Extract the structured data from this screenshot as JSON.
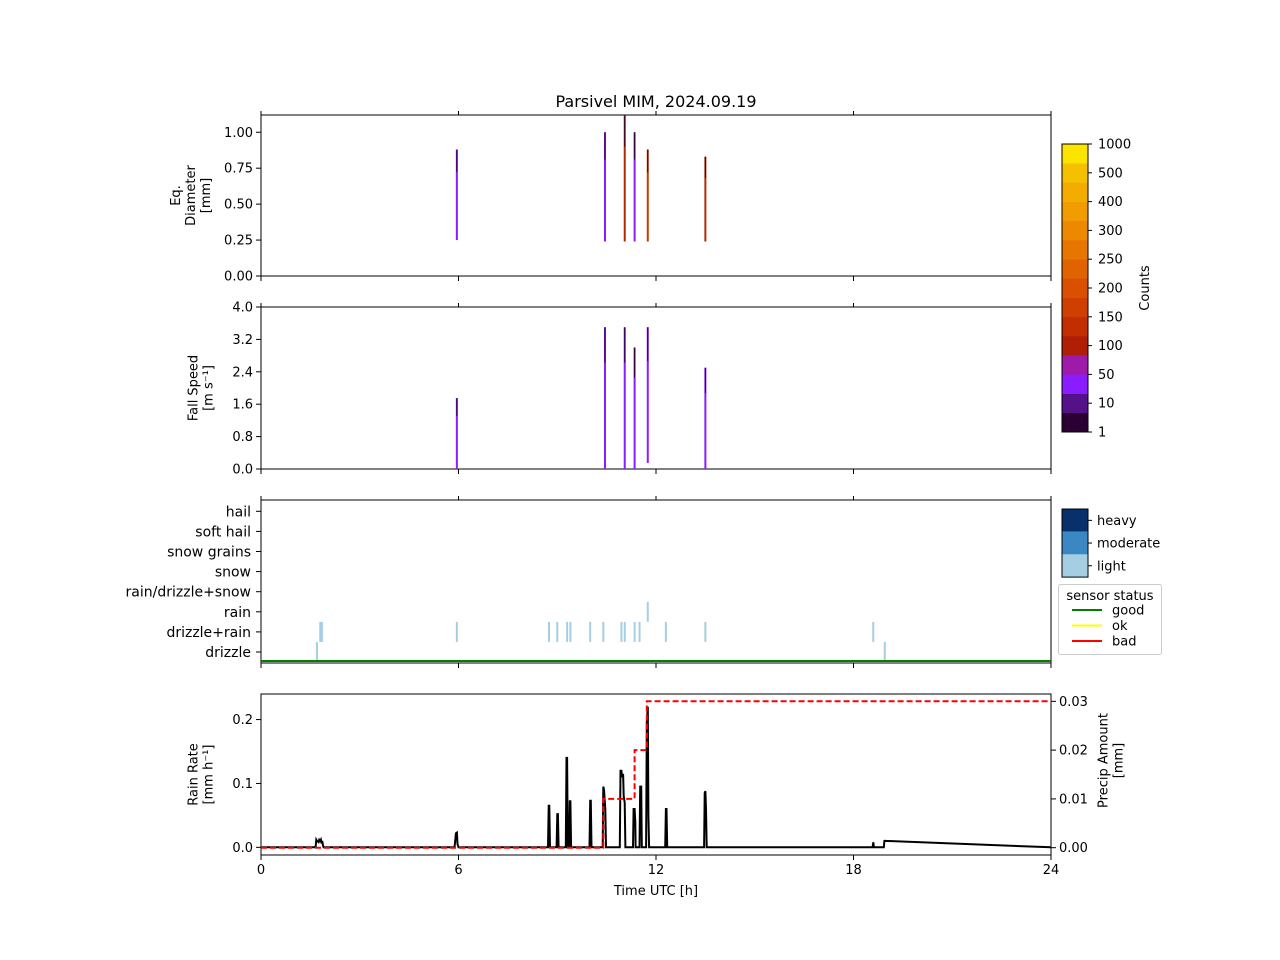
{
  "title": "Parsivel MIM, 2024.09.19",
  "colors": {
    "line": "#000000",
    "cumulative": "#ff0000",
    "good": "#008000",
    "ok": "#ffff00",
    "bad": "#ff0000",
    "light": "#a6cee3",
    "moderate": "#3a87c4",
    "heavy": "#08306b"
  },
  "chart_data": [
    {
      "type": "heatmap",
      "panel": "diameter",
      "ylabel": [
        "Eq.",
        "Diameter",
        "[mm]"
      ],
      "xlim": [
        0,
        24
      ],
      "ylim": [
        0,
        1.12
      ],
      "yticks": [
        "0.00",
        "0.25",
        "0.50",
        "0.75",
        "1.00"
      ],
      "xticks": [
        0,
        6,
        12,
        18,
        24
      ],
      "columns": [
        {
          "t": 5.95,
          "y0": 0.25,
          "y1": 0.88,
          "color": "#8a1cff"
        },
        {
          "t": 10.45,
          "y0": 0.24,
          "y1": 1.0,
          "color": "#8a1cff"
        },
        {
          "t": 11.05,
          "y0": 0.24,
          "y1": 1.12,
          "color": "#b02a00"
        },
        {
          "t": 11.35,
          "y0": 0.24,
          "y1": 1.0,
          "color": "#8a1cff"
        },
        {
          "t": 11.75,
          "y0": 0.24,
          "y1": 0.88,
          "color": "#c33d00"
        },
        {
          "t": 13.5,
          "y0": 0.24,
          "y1": 0.83,
          "color": "#b02a00"
        }
      ]
    },
    {
      "type": "heatmap",
      "panel": "fallspeed",
      "ylabel": [
        "Fall Speed",
        "[m s⁻¹]"
      ],
      "xlim": [
        0,
        24
      ],
      "ylim": [
        0,
        4.0
      ],
      "yticks": [
        "0.0",
        "0.8",
        "1.6",
        "2.4",
        "3.2",
        "4.0"
      ],
      "xticks": [
        0,
        6,
        12,
        18,
        24
      ],
      "columns": [
        {
          "t": 5.95,
          "y0": 0.0,
          "y1": 1.75,
          "color": "#8a1cff"
        },
        {
          "t": 10.45,
          "y0": 0.0,
          "y1": 3.5,
          "color": "#8a1cff"
        },
        {
          "t": 11.05,
          "y0": 0.0,
          "y1": 3.5,
          "color": "#8a1cff"
        },
        {
          "t": 11.35,
          "y0": 0.0,
          "y1": 3.0,
          "color": "#8a1cff"
        },
        {
          "t": 11.75,
          "y0": 0.15,
          "y1": 3.5,
          "color": "#8a1cff"
        },
        {
          "t": 13.5,
          "y0": 0.0,
          "y1": 2.5,
          "color": "#8a1cff"
        }
      ]
    },
    {
      "type": "bar",
      "panel": "weather-type",
      "categories": [
        "drizzle",
        "drizzle+rain",
        "rain",
        "rain/drizzle+snow",
        "snow",
        "snow grains",
        "soft hail",
        "hail"
      ],
      "xlim": [
        0,
        24
      ],
      "xticks": [
        0,
        6,
        12,
        18,
        24
      ],
      "events": [
        {
          "t": 1.7,
          "cat": 0,
          "level": "light"
        },
        {
          "t": 1.8,
          "cat": 1,
          "level": "light"
        },
        {
          "t": 1.85,
          "cat": 1,
          "level": "light"
        },
        {
          "t": 5.95,
          "cat": 1,
          "level": "light"
        },
        {
          "t": 8.75,
          "cat": 1,
          "level": "light"
        },
        {
          "t": 9.0,
          "cat": 1,
          "level": "light"
        },
        {
          "t": 9.3,
          "cat": 1,
          "level": "light"
        },
        {
          "t": 9.4,
          "cat": 1,
          "level": "light"
        },
        {
          "t": 10.0,
          "cat": 1,
          "level": "light"
        },
        {
          "t": 10.4,
          "cat": 1,
          "level": "light"
        },
        {
          "t": 10.95,
          "cat": 1,
          "level": "light"
        },
        {
          "t": 11.05,
          "cat": 1,
          "level": "light"
        },
        {
          "t": 11.35,
          "cat": 1,
          "level": "light"
        },
        {
          "t": 11.5,
          "cat": 1,
          "level": "light"
        },
        {
          "t": 11.75,
          "cat": 2,
          "level": "light"
        },
        {
          "t": 12.3,
          "cat": 1,
          "level": "light"
        },
        {
          "t": 13.5,
          "cat": 1,
          "level": "light"
        },
        {
          "t": 18.6,
          "cat": 1,
          "level": "light"
        },
        {
          "t": 18.95,
          "cat": 0,
          "level": "light"
        }
      ],
      "status": [
        {
          "t0": 0,
          "t1": 24,
          "state": "good"
        }
      ],
      "legend_intensity": [
        "heavy",
        "moderate",
        "light"
      ],
      "legend_status": {
        "title": "sensor status",
        "items": [
          "good",
          "ok",
          "bad"
        ]
      }
    },
    {
      "type": "line",
      "panel": "rain-rate",
      "xlabel": "Time UTC [h]",
      "ylabel": [
        "Rain Rate",
        "[mm h⁻¹]"
      ],
      "y2label": [
        "Precip Amount",
        "[mm]"
      ],
      "xlim": [
        0,
        24
      ],
      "ylim": [
        -0.012,
        0.24
      ],
      "y2lim": [
        -0.0015,
        0.0315
      ],
      "xticks": [
        0,
        6,
        12,
        18,
        24
      ],
      "yticks": [
        "0.0",
        "0.1",
        "0.2"
      ],
      "y2ticks": [
        "0.00",
        "0.01",
        "0.02",
        "0.03"
      ],
      "rain_rate": {
        "t": [
          0.0,
          1.66,
          1.68,
          1.7,
          1.75,
          1.77,
          1.8,
          1.82,
          1.84,
          1.86,
          1.88,
          1.9,
          5.88,
          5.9,
          5.92,
          5.95,
          5.97,
          6.0,
          8.72,
          8.74,
          8.76,
          8.78,
          8.98,
          9.0,
          9.02,
          9.04,
          9.26,
          9.28,
          9.3,
          9.32,
          9.36,
          9.38,
          9.4,
          9.42,
          9.98,
          10.0,
          10.02,
          10.04,
          10.38,
          10.4,
          10.42,
          10.46,
          10.48,
          10.9,
          10.92,
          10.95,
          10.97,
          11.0,
          11.02,
          11.05,
          11.07,
          11.08,
          11.3,
          11.32,
          11.35,
          11.37,
          11.38,
          11.5,
          11.52,
          11.55,
          11.57,
          11.7,
          11.72,
          11.75,
          11.77,
          11.79,
          12.28,
          12.3,
          12.32,
          12.34,
          13.46,
          13.48,
          13.5,
          13.52,
          13.54,
          18.58,
          18.6,
          18.62,
          18.92,
          18.94,
          18.96,
          24.0
        ],
        "v": [
          0,
          0,
          0.012,
          0.01,
          0.008,
          0.012,
          0.01,
          0.012,
          0.006,
          0.01,
          0.004,
          0,
          0,
          0.01,
          0.022,
          0.023,
          0.005,
          0,
          0,
          0.065,
          0.065,
          0,
          0,
          0.052,
          0.052,
          0,
          0,
          0.14,
          0.14,
          0,
          0,
          0.072,
          0.072,
          0,
          0,
          0.073,
          0.073,
          0,
          0,
          0.095,
          0.09,
          0.06,
          0,
          0,
          0.12,
          0.12,
          0.11,
          0.115,
          0.08,
          0.07,
          0,
          0,
          0,
          0.06,
          0.06,
          0.04,
          0,
          0,
          0.095,
          0.095,
          0,
          0,
          0.195,
          0.22,
          0.05,
          0,
          0,
          0.06,
          0.06,
          0,
          0,
          0.085,
          0.088,
          0.06,
          0,
          0,
          0.008,
          0,
          0,
          0.01,
          0.01,
          0
        ]
      },
      "precip_amount": {
        "t": [
          0.0,
          10.4,
          10.4,
          11.35,
          11.35,
          11.55,
          11.55,
          11.72,
          11.72,
          24.0
        ],
        "v": [
          0.0,
          0.0,
          0.01,
          0.01,
          0.02,
          0.02,
          0.02,
          0.02,
          0.03,
          0.03
        ]
      }
    }
  ],
  "colorbar": {
    "label": "Counts",
    "ticks": [
      "1",
      "10",
      "50",
      "100",
      "150",
      "200",
      "250",
      "300",
      "400",
      "500",
      "1000"
    ],
    "colors": [
      "#2b0033",
      "#55118a",
      "#8a1cff",
      "#9e1aa8",
      "#b01e05",
      "#c22e00",
      "#cf3f00",
      "#d95000",
      "#e06300",
      "#e77600",
      "#ed8900",
      "#f19c00",
      "#f3ad00",
      "#f5c000",
      "#fae400"
    ]
  }
}
